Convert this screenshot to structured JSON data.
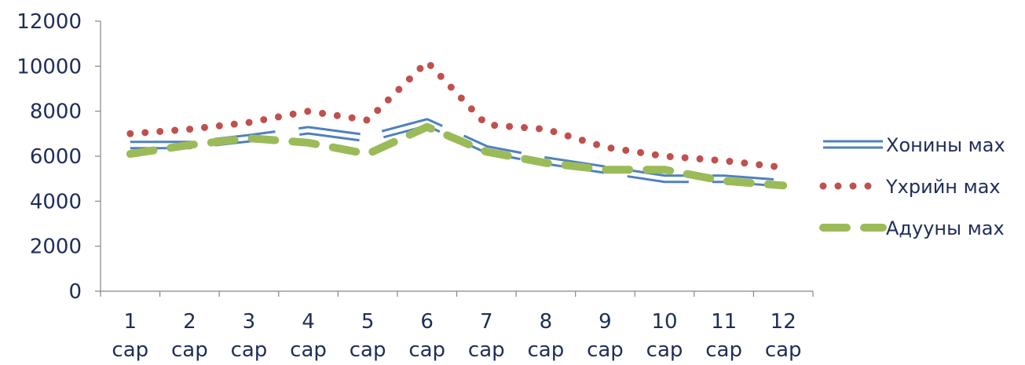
{
  "chart_data": {
    "type": "line",
    "title": "",
    "xlabel": "",
    "ylabel": "",
    "categories": [
      [
        "1",
        "сар"
      ],
      [
        "2",
        "сар"
      ],
      [
        "3",
        "сар"
      ],
      [
        "4",
        "сар"
      ],
      [
        "5",
        "сар"
      ],
      [
        "6",
        "сар"
      ],
      [
        "7",
        "сар"
      ],
      [
        "8",
        "сар"
      ],
      [
        "9",
        "сар"
      ],
      [
        "10",
        "сар"
      ],
      [
        "11",
        "сар"
      ],
      [
        "12",
        "сар"
      ]
    ],
    "ylim": [
      0,
      12000
    ],
    "yticks": [
      0,
      2000,
      4000,
      6000,
      8000,
      10000,
      12000
    ],
    "grid": false,
    "legend": "right",
    "series": [
      {
        "name": "Хонины мах",
        "style": "double-outline",
        "color": "#4F81BD",
        "values": [
          6500,
          6500,
          6800,
          7150,
          6800,
          7500,
          6300,
          5800,
          5400,
          5000,
          5000,
          4800
        ]
      },
      {
        "name": "Үхрийн мах",
        "style": "dotted",
        "color": "#C0504D",
        "values": [
          7000,
          7200,
          7500,
          8000,
          7600,
          10200,
          7400,
          7200,
          6400,
          6000,
          5800,
          5500
        ]
      },
      {
        "name": "Адууны мах",
        "style": "dashed",
        "color": "#9BBB59",
        "values": [
          6100,
          6500,
          6800,
          6600,
          6100,
          7300,
          6200,
          5700,
          5400,
          5400,
          4900,
          4700
        ]
      }
    ]
  }
}
